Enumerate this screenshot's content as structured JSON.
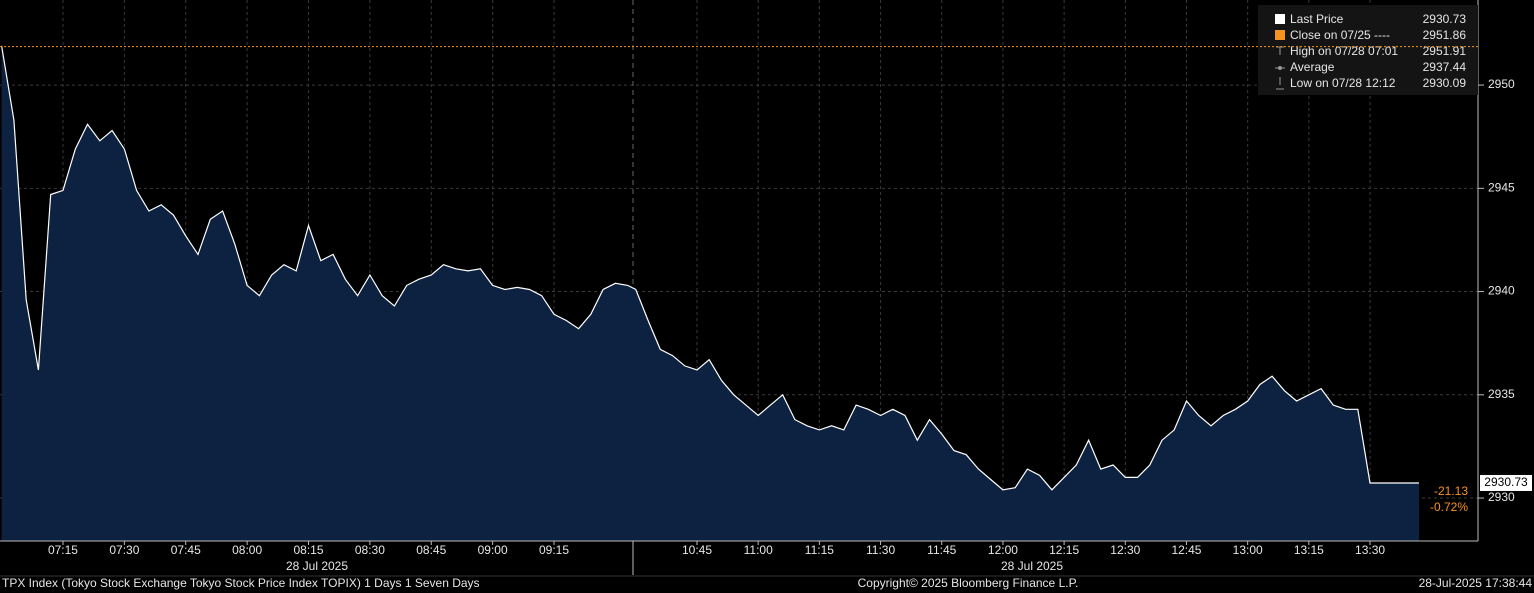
{
  "chart_data": {
    "type": "area",
    "x": [
      "07:00",
      "07:03",
      "07:06",
      "07:09",
      "07:12",
      "07:15",
      "07:18",
      "07:21",
      "07:24",
      "07:27",
      "07:30",
      "07:33",
      "07:36",
      "07:39",
      "07:42",
      "07:45",
      "07:48",
      "07:51",
      "07:54",
      "07:57",
      "08:00",
      "08:03",
      "08:06",
      "08:09",
      "08:12",
      "08:15",
      "08:18",
      "08:21",
      "08:24",
      "08:27",
      "08:30",
      "08:33",
      "08:36",
      "08:39",
      "08:42",
      "08:45",
      "08:48",
      "08:51",
      "08:54",
      "08:57",
      "09:00",
      "09:03",
      "09:06",
      "09:09",
      "09:12",
      "09:15",
      "09:18",
      "09:21",
      "09:24",
      "09:27",
      "09:30",
      "09:33",
      "10:30",
      "10:33",
      "10:36",
      "10:39",
      "10:42",
      "10:45",
      "10:48",
      "10:51",
      "10:54",
      "10:57",
      "11:00",
      "11:03",
      "11:06",
      "11:09",
      "11:12",
      "11:15",
      "11:18",
      "11:21",
      "11:24",
      "11:27",
      "11:30",
      "11:33",
      "11:36",
      "11:39",
      "11:42",
      "11:45",
      "11:48",
      "11:51",
      "11:54",
      "11:57",
      "12:00",
      "12:03",
      "12:06",
      "12:09",
      "12:12",
      "12:15",
      "12:18",
      "12:21",
      "12:24",
      "12:27",
      "12:30",
      "12:33",
      "12:36",
      "12:39",
      "12:42",
      "12:45",
      "12:48",
      "12:51",
      "12:54",
      "12:57",
      "13:00",
      "13:03",
      "13:06",
      "13:09",
      "13:12",
      "13:15",
      "13:18",
      "13:21",
      "13:24",
      "13:27",
      "13:30",
      "13:42"
    ],
    "series": [
      {
        "name": "Last Price",
        "color": "#ffffff",
        "fill": "#0d2240",
        "values": [
          2951.9,
          2948.3,
          2939.6,
          2936.2,
          2944.7,
          2944.9,
          2946.9,
          2948.1,
          2947.3,
          2947.8,
          2946.9,
          2944.9,
          2943.9,
          2944.2,
          2943.7,
          2942.7,
          2941.8,
          2943.5,
          2943.9,
          2942.3,
          2940.3,
          2939.8,
          2940.8,
          2941.3,
          2941.0,
          2943.2,
          2941.5,
          2941.8,
          2940.6,
          2939.8,
          2940.8,
          2939.8,
          2939.3,
          2940.3,
          2940.6,
          2940.8,
          2941.3,
          2941.1,
          2941.0,
          2941.1,
          2940.3,
          2940.1,
          2940.2,
          2940.1,
          2939.8,
          2938.9,
          2938.6,
          2938.2,
          2938.9,
          2940.1,
          2940.4,
          2940.3,
          2940.1,
          2938.6,
          2937.2,
          2936.9,
          2936.4,
          2936.2,
          2936.7,
          2935.7,
          2935.0,
          2934.5,
          2934.0,
          2934.5,
          2935.0,
          2933.8,
          2933.5,
          2933.3,
          2933.5,
          2933.3,
          2934.5,
          2934.3,
          2934.0,
          2934.3,
          2934.0,
          2932.8,
          2933.8,
          2933.1,
          2932.3,
          2932.1,
          2931.4,
          2930.9,
          2930.4,
          2930.5,
          2931.4,
          2931.1,
          2930.4,
          2931.0,
          2931.6,
          2932.8,
          2931.4,
          2931.6,
          2931.0,
          2931.0,
          2931.6,
          2932.8,
          2933.3,
          2934.7,
          2934.0,
          2933.5,
          2934.0,
          2934.3,
          2934.7,
          2935.5,
          2935.9,
          2935.2,
          2934.7,
          2935.0,
          2935.3,
          2934.5,
          2934.3,
          2934.3,
          2930.73,
          2930.73
        ]
      }
    ],
    "ylim": [
      2927.92,
      2954.12
    ],
    "yticks": [
      2930,
      2935,
      2940,
      2945,
      2950
    ],
    "xticks": [
      "07:15",
      "07:30",
      "07:45",
      "08:00",
      "08:15",
      "08:30",
      "08:45",
      "09:00",
      "09:15",
      "10:45",
      "11:00",
      "11:15",
      "11:30",
      "11:45",
      "12:00",
      "12:15",
      "12:30",
      "12:45",
      "13:00",
      "13:15",
      "13:30"
    ],
    "date_labels": [
      "28 Jul 2025",
      "28 Jul 2025"
    ],
    "grid": true,
    "last_price": 2930.73,
    "legend": [
      {
        "label": "Close on 07/25 ----",
        "value": 2951.86,
        "color": "#f7931e"
      },
      {
        "label": "High on 07/28 07:01",
        "value": 2951.91
      },
      {
        "label": "Average",
        "value": 2937.44
      },
      {
        "label": "Low on 07/28 12:12",
        "value": 2930.09
      }
    ],
    "change": -21.13,
    "change_pct": {
      "value": -0.72,
      "label": "-0.72%"
    },
    "footer": {
      "left": "TPX Index (Tokyo Stock Exchange Tokyo Stock Price Index TOPIX) 1 Days 1 Seven Days",
      "center": "Copyright© 2025 Bloomberg Finance L.P.",
      "right": "28-Jul-2025 17:38:44"
    }
  }
}
